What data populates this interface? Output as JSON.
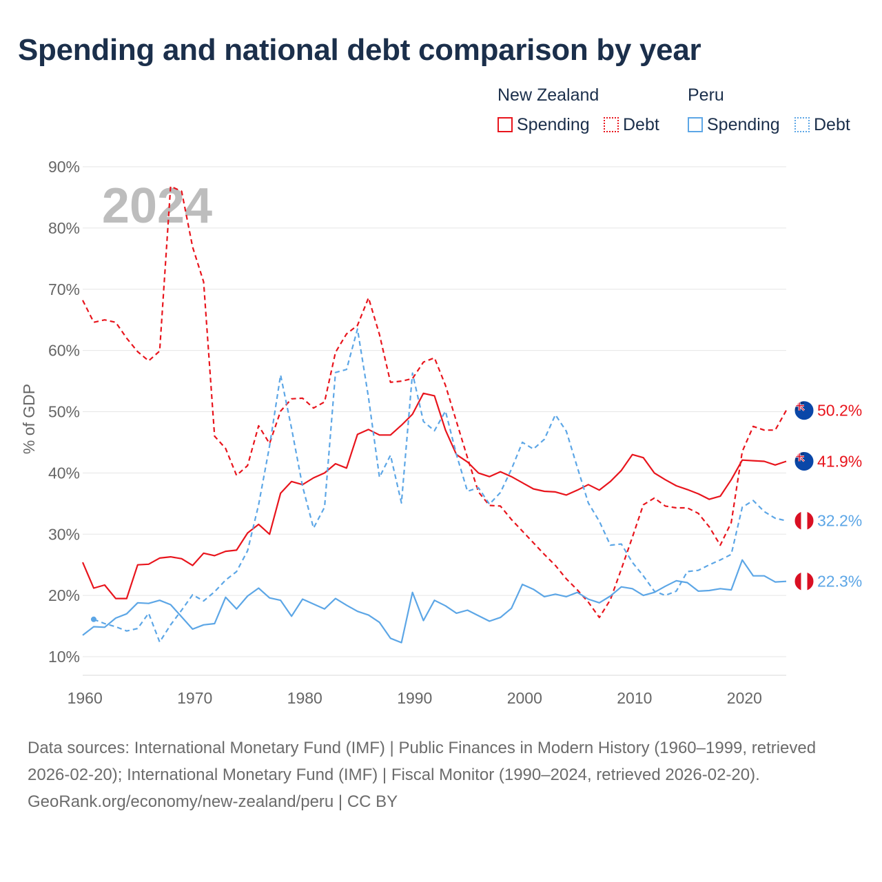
{
  "title": "Spending and national debt comparison by year",
  "colors": {
    "nz": "#e8141c",
    "peru": "#5ca6e6",
    "title": "#1b2f4b",
    "grid": "#e5e5e5",
    "axis_text": "#666666",
    "year_watermark": "#bdbdbd"
  },
  "legend": {
    "groups": [
      {
        "country": "New Zealand",
        "items": [
          {
            "label": "Spending",
            "style": "solid"
          },
          {
            "label": "Debt",
            "style": "dotted"
          }
        ]
      },
      {
        "country": "Peru",
        "items": [
          {
            "label": "Spending",
            "style": "solid"
          },
          {
            "label": "Debt",
            "style": "dotted"
          }
        ]
      }
    ]
  },
  "year_label": "2024",
  "chart_data": {
    "type": "line",
    "ylabel": "% of GDP",
    "xlabel": "",
    "ylim": [
      10,
      90
    ],
    "xlim": [
      1960,
      2024
    ],
    "y_ticks": [
      {
        "value": 10,
        "label": "10%"
      },
      {
        "value": 20,
        "label": "20%"
      },
      {
        "value": 30,
        "label": "30%"
      },
      {
        "value": 40,
        "label": "40%"
      },
      {
        "value": 50,
        "label": "50%"
      },
      {
        "value": 60,
        "label": "60%"
      },
      {
        "value": 70,
        "label": "70%"
      },
      {
        "value": 80,
        "label": "80%"
      },
      {
        "value": 90,
        "label": "90%"
      }
    ],
    "x_ticks": [
      {
        "value": 1960,
        "label": "1960"
      },
      {
        "value": 1970,
        "label": "1970"
      },
      {
        "value": 1980,
        "label": "1980"
      },
      {
        "value": 1990,
        "label": "1990"
      },
      {
        "value": 2000,
        "label": "2000"
      },
      {
        "value": 2010,
        "label": "2010"
      },
      {
        "value": 2020,
        "label": "2020"
      }
    ],
    "series": [
      {
        "name": "New Zealand Debt",
        "country": "New Zealand",
        "metric": "Debt",
        "color": "#e8141c",
        "dash": "dashed",
        "end_label": "50.2%",
        "flag": "new-zealand",
        "x0": 1960,
        "values": [
          68.2,
          64.6,
          65.0,
          64.6,
          62.0,
          59.8,
          58.3,
          59.9,
          86.8,
          86.0,
          76.9,
          71.2,
          46.0,
          44.0,
          39.6,
          41.2,
          47.7,
          44.8,
          50.1,
          52.1,
          52.2,
          50.6,
          51.6,
          59.7,
          62.7,
          64.1,
          68.6,
          62.6,
          54.8,
          55.0,
          55.4,
          58.1,
          58.8,
          54.3,
          48.4,
          42.5,
          36.9,
          34.7,
          34.6,
          32.4,
          30.5,
          28.6,
          26.7,
          24.9,
          22.7,
          20.9,
          18.9,
          16.4,
          19.3,
          24.3,
          29.5,
          34.8,
          35.9,
          34.6,
          34.3,
          34.3,
          33.4,
          31.2,
          28.2,
          31.9,
          43.5,
          47.6,
          47.0,
          47.0,
          50.2
        ]
      },
      {
        "name": "New Zealand Spending",
        "country": "New Zealand",
        "metric": "Spending",
        "color": "#e8141c",
        "dash": "solid",
        "end_label": "41.9%",
        "flag": "new-zealand",
        "x0": 1960,
        "values": [
          25.4,
          21.2,
          21.7,
          19.5,
          19.5,
          25.0,
          25.1,
          26.1,
          26.3,
          26.0,
          24.9,
          26.9,
          26.5,
          27.2,
          27.4,
          30.2,
          31.6,
          30.0,
          36.7,
          38.6,
          38.1,
          39.2,
          40.0,
          41.5,
          40.8,
          46.3,
          47.1,
          46.2,
          46.2,
          47.8,
          49.6,
          53.0,
          52.6,
          47.0,
          43.0,
          41.8,
          40.0,
          39.4,
          40.2,
          39.4,
          38.4,
          37.4,
          37.0,
          36.9,
          36.4,
          37.2,
          38.1,
          37.2,
          38.6,
          40.4,
          43.0,
          42.5,
          40.0,
          38.9,
          37.9,
          37.3,
          36.6,
          35.7,
          36.2,
          38.9,
          42.1,
          42.0,
          41.9,
          41.3,
          41.9
        ]
      },
      {
        "name": "Peru Debt",
        "country": "Peru",
        "metric": "Debt",
        "color": "#5ca6e6",
        "dash": "dashed",
        "end_label": "32.2%",
        "flag": "peru",
        "x0": 1961,
        "values": [
          16.1,
          15.4,
          14.9,
          14.2,
          14.6,
          17.1,
          12.4,
          15.2,
          17.6,
          20.1,
          19.1,
          20.6,
          22.5,
          23.9,
          27.3,
          34.8,
          44.4,
          56.0,
          47.3,
          37.8,
          31.0,
          34.4,
          56.4,
          56.9,
          63.5,
          52.3,
          39.3,
          42.9,
          35.1,
          56.3,
          48.4,
          46.9,
          50.1,
          43.0,
          37.0,
          37.6,
          34.9,
          36.8,
          40.6,
          45.0,
          43.9,
          45.5,
          49.5,
          46.8,
          40.9,
          35.1,
          32.1,
          28.2,
          28.4,
          25.4,
          23.2,
          20.7,
          20.0,
          20.7,
          23.9,
          24.1,
          25.0,
          25.8,
          26.7,
          34.4,
          35.5,
          33.7,
          32.6,
          32.2
        ]
      },
      {
        "name": "Peru Spending",
        "country": "Peru",
        "metric": "Spending",
        "color": "#5ca6e6",
        "dash": "solid",
        "end_label": "22.3%",
        "flag": "peru",
        "x0": 1960,
        "values": [
          13.5,
          14.9,
          14.8,
          16.3,
          17.0,
          18.8,
          18.7,
          19.2,
          18.5,
          16.5,
          14.5,
          15.2,
          15.4,
          19.7,
          17.8,
          19.9,
          21.2,
          19.6,
          19.2,
          16.6,
          19.4,
          18.6,
          17.8,
          19.5,
          18.4,
          17.4,
          16.8,
          15.6,
          13.0,
          12.3,
          20.5,
          15.9,
          19.2,
          18.3,
          17.1,
          17.6,
          16.7,
          15.8,
          16.4,
          17.9,
          21.8,
          21.0,
          19.8,
          20.2,
          19.8,
          20.5,
          19.4,
          18.8,
          19.9,
          21.4,
          21.1,
          20.0,
          20.5,
          21.5,
          22.4,
          22.1,
          20.7,
          20.8,
          21.1,
          20.9,
          25.8,
          23.2,
          23.2,
          22.2,
          22.3
        ]
      }
    ]
  },
  "footer": {
    "sources": "Data sources: International Monetary Fund (IMF) | Public Finances in Modern History (1960–1999, retrieved 2026-02-20); International Monetary Fund (IMF) | Fiscal Monitor (1990–2024, retrieved 2026-02-20).",
    "credit": "GeoRank.org/economy/new-zealand/peru | CC BY"
  }
}
